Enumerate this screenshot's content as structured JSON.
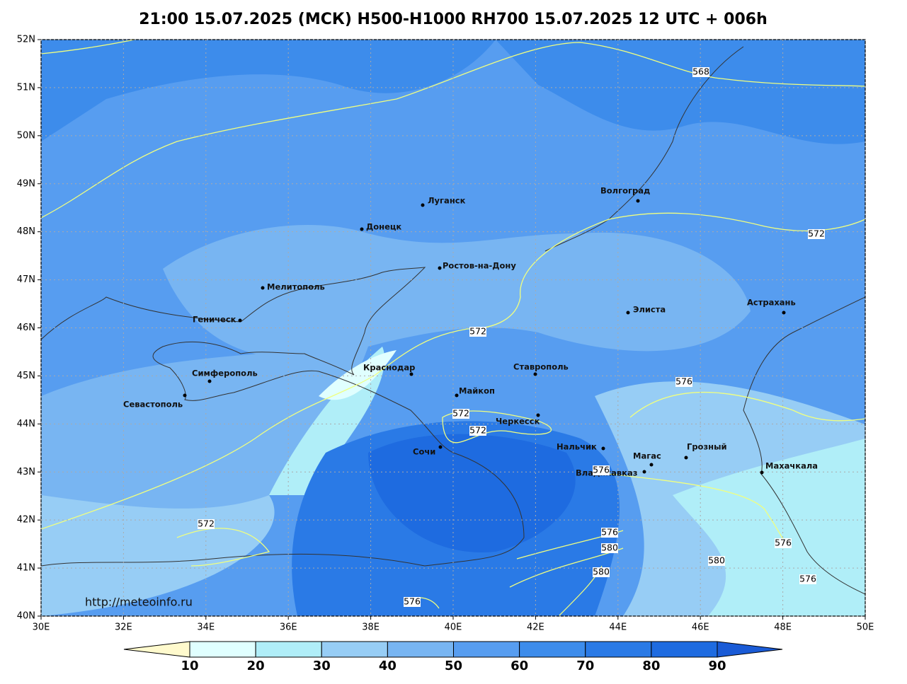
{
  "title": "21:00 15.07.2025 (МСК) H500-H1000 RH700 15.07.2025 12 UTC + 006h",
  "lat_labels": [
    "52N",
    "51N",
    "50N",
    "49N",
    "48N",
    "47N",
    "46N",
    "45N",
    "44N",
    "43N",
    "42N",
    "41N",
    "40N"
  ],
  "lon_labels": [
    "30E",
    "32E",
    "34E",
    "36E",
    "38E",
    "40E",
    "42E",
    "44E",
    "46E",
    "48E",
    "50E"
  ],
  "cities": [
    "Луганск",
    "Донецк",
    "Ростов-на-Дону",
    "Мелитополь",
    "Геническ",
    "Волгоград",
    "Элиста",
    "Астрахань",
    "Симферополь",
    "Севастополь",
    "Краснодар",
    "Ставрополь",
    "Майкоп",
    "Черкесск",
    "Сочи",
    "Нальчик",
    "Магас",
    "Грозный",
    "Владикавказ",
    "Махачкала"
  ],
  "contour_labels": [
    568,
    572,
    572,
    576,
    572,
    572,
    576,
    572,
    576,
    580,
    576,
    580,
    580,
    576,
    576
  ],
  "credit": "http://meteoinfo.ru",
  "colorbar": {
    "ticks": [
      10,
      20,
      30,
      40,
      50,
      60,
      70,
      80,
      90
    ],
    "colors": [
      "#fffacd",
      "#e0ffff",
      "#b0eef8",
      "#97cdf5",
      "#78b5f2",
      "#579df0",
      "#3d8ceb",
      "#2a7ae6",
      "#1e6be0",
      "#1a5bd6"
    ]
  }
}
